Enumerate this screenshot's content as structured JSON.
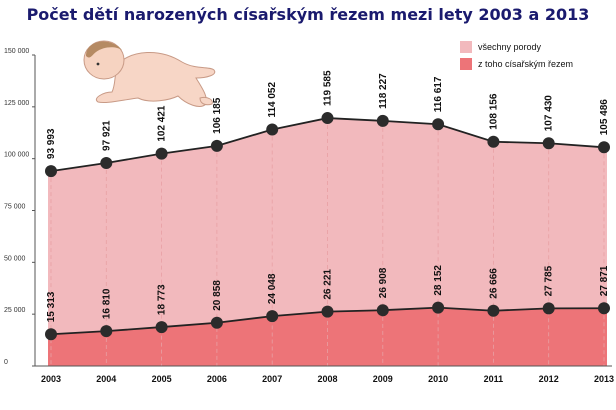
{
  "title": "Počet dětí narozených císařským řezem mezi lety 2003 a 2013",
  "chart_data": {
    "type": "area",
    "title": "Počet dětí narozených císařským řezem mezi lety 2003 a 2013",
    "x": [
      "2003",
      "2004",
      "2005",
      "2006",
      "2007",
      "2008",
      "2009",
      "2010",
      "2011",
      "2012",
      "2013"
    ],
    "ylim": [
      0,
      150000
    ],
    "yticks": [
      0,
      25000,
      50000,
      75000,
      100000,
      125000,
      150000
    ],
    "ytick_labels": [
      "0",
      "25 000",
      "50 000",
      "75 000",
      "100 000",
      "125 000",
      "150 000"
    ],
    "grid": false,
    "legend_position": "top-right",
    "series": [
      {
        "name": "všechny porody",
        "color": "#f2b9bd",
        "values": [
          93993,
          97921,
          102421,
          106185,
          114052,
          119585,
          118227,
          116617,
          108156,
          107430,
          105486
        ],
        "labels": [
          "93 993",
          "97 921",
          "102 421",
          "106 185",
          "114 052",
          "119 585",
          "118 227",
          "116 617",
          "108 156",
          "107 430",
          "105 486"
        ]
      },
      {
        "name": "z toho císařským řezem",
        "color": "#ed7478",
        "values": [
          15313,
          16810,
          18773,
          20858,
          24048,
          26221,
          26908,
          28152,
          26666,
          27785,
          27871
        ],
        "labels": [
          "15 313",
          "16 810",
          "18 773",
          "20 858",
          "24 048",
          "26 221",
          "26 908",
          "28 152",
          "26 666",
          "27 785",
          "27 871"
        ]
      }
    ]
  },
  "illustration": {
    "icon": "baby-icon"
  }
}
